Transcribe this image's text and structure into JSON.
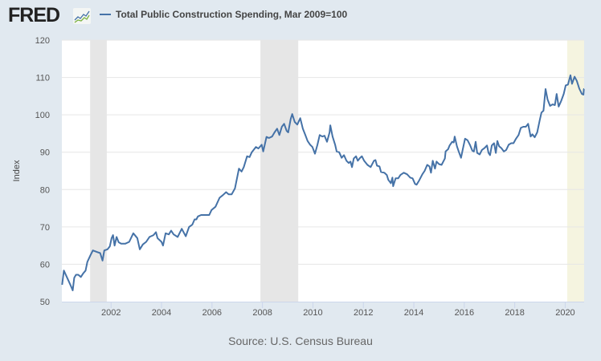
{
  "header": {
    "logo_text": "FRED",
    "logo_icon": "line-chart-icon",
    "legend_label": "Total Public Construction Spending, Mar 2009=100",
    "legend_color": "#4572a7"
  },
  "footer": {
    "source": "Source: U.S. Census Bureau"
  },
  "colors": {
    "background": "#e1e9f0",
    "plot_background": "#ffffff",
    "line": "#4572a7",
    "recession": "#e6e6e6",
    "preliminary_recession": "#f5f4e0",
    "grid": "#e6e6e6"
  },
  "chart_data": {
    "type": "line",
    "title": "Total Public Construction Spending, Mar 2009=100",
    "xlabel": "",
    "ylabel": "Index",
    "xlim": [
      2000.05,
      2020.75
    ],
    "ylim": [
      50,
      120
    ],
    "yticks": [
      50,
      60,
      70,
      80,
      90,
      100,
      110,
      120
    ],
    "xticks": [
      2002,
      2004,
      2006,
      2008,
      2010,
      2012,
      2014,
      2016,
      2018,
      2020
    ],
    "grid": true,
    "legend": "top-left",
    "recessions": [
      {
        "start": 2001.17,
        "end": 2001.83,
        "kind": "recession"
      },
      {
        "start": 2007.92,
        "end": 2009.42,
        "kind": "recession"
      },
      {
        "start": 2020.08,
        "end": 2020.75,
        "kind": "preliminary"
      }
    ],
    "series": [
      {
        "name": "Total Public Construction Spending, Mar 2009=100",
        "points": [
          [
            2000.06,
            54.5
          ],
          [
            2000.13,
            58.3
          ],
          [
            2000.22,
            57.0
          ],
          [
            2000.32,
            55.5
          ],
          [
            2000.42,
            54.0
          ],
          [
            2000.48,
            53.0
          ],
          [
            2000.54,
            56.4
          ],
          [
            2000.61,
            57.2
          ],
          [
            2000.7,
            57.2
          ],
          [
            2000.8,
            56.6
          ],
          [
            2000.9,
            57.6
          ],
          [
            2000.99,
            58.3
          ],
          [
            2001.06,
            60.6
          ],
          [
            2001.18,
            62.4
          ],
          [
            2001.28,
            63.7
          ],
          [
            2001.44,
            63.3
          ],
          [
            2001.57,
            63.0
          ],
          [
            2001.66,
            61.0
          ],
          [
            2001.73,
            63.7
          ],
          [
            2001.86,
            64.0
          ],
          [
            2001.95,
            64.8
          ],
          [
            2002.02,
            67.0
          ],
          [
            2002.08,
            67.8
          ],
          [
            2002.14,
            65.0
          ],
          [
            2002.22,
            67.3
          ],
          [
            2002.3,
            65.9
          ],
          [
            2002.4,
            65.5
          ],
          [
            2002.56,
            65.5
          ],
          [
            2002.72,
            66.0
          ],
          [
            2002.88,
            68.3
          ],
          [
            2003.04,
            67.0
          ],
          [
            2003.14,
            64.0
          ],
          [
            2003.26,
            65.3
          ],
          [
            2003.39,
            66.0
          ],
          [
            2003.52,
            67.3
          ],
          [
            2003.68,
            67.8
          ],
          [
            2003.78,
            68.6
          ],
          [
            2003.84,
            67.0
          ],
          [
            2004.0,
            66.0
          ],
          [
            2004.06,
            65.0
          ],
          [
            2004.16,
            68.3
          ],
          [
            2004.29,
            68.0
          ],
          [
            2004.38,
            69.0
          ],
          [
            2004.48,
            68.0
          ],
          [
            2004.64,
            67.3
          ],
          [
            2004.8,
            69.5
          ],
          [
            2004.96,
            67.5
          ],
          [
            2005.09,
            70.0
          ],
          [
            2005.22,
            70.6
          ],
          [
            2005.38,
            72.0
          ],
          [
            2005.31,
            72.0
          ],
          [
            2005.44,
            72.8
          ],
          [
            2005.57,
            73.2
          ],
          [
            2005.73,
            73.2
          ],
          [
            2005.89,
            73.2
          ],
          [
            2005.98,
            74.5
          ],
          [
            2006.14,
            75.4
          ],
          [
            2006.3,
            77.8
          ],
          [
            2006.43,
            78.5
          ],
          [
            2006.56,
            79.3
          ],
          [
            2006.66,
            78.7
          ],
          [
            2006.78,
            78.7
          ],
          [
            2006.91,
            80.3
          ],
          [
            2007.07,
            85.6
          ],
          [
            2007.17,
            84.8
          ],
          [
            2007.26,
            86.0
          ],
          [
            2007.39,
            88.9
          ],
          [
            2007.49,
            88.7
          ],
          [
            2007.58,
            90.0
          ],
          [
            2007.74,
            91.4
          ],
          [
            2007.84,
            91.0
          ],
          [
            2007.97,
            92.0
          ],
          [
            2008.03,
            90.2
          ],
          [
            2008.16,
            94.1
          ],
          [
            2008.26,
            93.8
          ],
          [
            2008.38,
            94.2
          ],
          [
            2008.48,
            95.3
          ],
          [
            2008.58,
            96.3
          ],
          [
            2008.67,
            94.6
          ],
          [
            2008.77,
            96.8
          ],
          [
            2008.86,
            97.6
          ],
          [
            2008.96,
            95.7
          ],
          [
            2009.02,
            95.3
          ],
          [
            2009.12,
            98.9
          ],
          [
            2009.18,
            100.2
          ],
          [
            2009.28,
            98.1
          ],
          [
            2009.38,
            97.4
          ],
          [
            2009.5,
            99.1
          ],
          [
            2009.6,
            96.3
          ],
          [
            2009.7,
            94.6
          ],
          [
            2009.79,
            93.0
          ],
          [
            2009.89,
            92.0
          ],
          [
            2009.98,
            91.4
          ],
          [
            2010.08,
            89.6
          ],
          [
            2010.18,
            92.0
          ],
          [
            2010.27,
            94.6
          ],
          [
            2010.37,
            94.2
          ],
          [
            2010.46,
            94.4
          ],
          [
            2010.56,
            92.8
          ],
          [
            2010.66,
            95.3
          ],
          [
            2010.69,
            97.2
          ],
          [
            2010.78,
            94.2
          ],
          [
            2010.88,
            92.0
          ],
          [
            2010.94,
            90.2
          ],
          [
            2011.04,
            90.0
          ],
          [
            2011.14,
            88.5
          ],
          [
            2011.23,
            89.2
          ],
          [
            2011.33,
            87.7
          ],
          [
            2011.42,
            87.1
          ],
          [
            2011.49,
            87.5
          ],
          [
            2011.55,
            86.0
          ],
          [
            2011.62,
            88.3
          ],
          [
            2011.71,
            88.9
          ],
          [
            2011.78,
            87.7
          ],
          [
            2011.87,
            88.5
          ],
          [
            2011.94,
            88.9
          ],
          [
            2012.03,
            87.7
          ],
          [
            2012.16,
            86.6
          ],
          [
            2012.29,
            86.0
          ],
          [
            2012.42,
            87.7
          ],
          [
            2012.48,
            87.9
          ],
          [
            2012.54,
            86.4
          ],
          [
            2012.64,
            86.2
          ],
          [
            2012.7,
            84.7
          ],
          [
            2012.83,
            84.5
          ],
          [
            2012.93,
            83.9
          ],
          [
            2012.99,
            82.6
          ],
          [
            2013.09,
            81.7
          ],
          [
            2013.15,
            83.2
          ],
          [
            2013.18,
            80.9
          ],
          [
            2013.28,
            83.0
          ],
          [
            2013.38,
            83.0
          ],
          [
            2013.47,
            83.9
          ],
          [
            2013.6,
            84.5
          ],
          [
            2013.73,
            84.1
          ],
          [
            2013.86,
            83.2
          ],
          [
            2013.95,
            83.0
          ],
          [
            2014.05,
            81.5
          ],
          [
            2014.11,
            81.3
          ],
          [
            2014.21,
            82.4
          ],
          [
            2014.34,
            84.1
          ],
          [
            2014.43,
            85.0
          ],
          [
            2014.53,
            86.6
          ],
          [
            2014.62,
            86.2
          ],
          [
            2014.68,
            84.5
          ],
          [
            2014.75,
            87.7
          ],
          [
            2014.84,
            85.6
          ],
          [
            2014.9,
            87.5
          ],
          [
            2015.0,
            86.8
          ],
          [
            2015.1,
            86.6
          ],
          [
            2015.23,
            88.3
          ],
          [
            2015.26,
            90.2
          ],
          [
            2015.36,
            90.8
          ],
          [
            2015.42,
            91.8
          ],
          [
            2015.52,
            92.8
          ],
          [
            2015.58,
            92.6
          ],
          [
            2015.62,
            94.2
          ],
          [
            2015.71,
            91.6
          ],
          [
            2015.78,
            90.2
          ],
          [
            2015.87,
            88.5
          ],
          [
            2015.94,
            90.8
          ],
          [
            2016.03,
            93.6
          ],
          [
            2016.13,
            93.2
          ],
          [
            2016.22,
            92.0
          ],
          [
            2016.32,
            90.4
          ],
          [
            2016.38,
            90.2
          ],
          [
            2016.45,
            92.8
          ],
          [
            2016.51,
            89.8
          ],
          [
            2016.61,
            89.4
          ],
          [
            2016.7,
            90.6
          ],
          [
            2016.8,
            91.1
          ],
          [
            2016.9,
            91.8
          ],
          [
            2016.96,
            89.8
          ],
          [
            2017.02,
            89.2
          ],
          [
            2017.09,
            91.8
          ],
          [
            2017.18,
            92.4
          ],
          [
            2017.25,
            89.8
          ],
          [
            2017.31,
            93.0
          ],
          [
            2017.38,
            91.6
          ],
          [
            2017.47,
            91.1
          ],
          [
            2017.57,
            90.2
          ],
          [
            2017.66,
            90.6
          ],
          [
            2017.76,
            92.0
          ],
          [
            2017.86,
            92.4
          ],
          [
            2017.95,
            92.4
          ],
          [
            2018.05,
            93.6
          ],
          [
            2018.15,
            94.6
          ],
          [
            2018.24,
            96.5
          ],
          [
            2018.34,
            96.8
          ],
          [
            2018.44,
            96.8
          ],
          [
            2018.53,
            97.6
          ],
          [
            2018.63,
            94.2
          ],
          [
            2018.7,
            94.8
          ],
          [
            2018.79,
            94.0
          ],
          [
            2018.89,
            95.3
          ],
          [
            2018.99,
            98.5
          ],
          [
            2019.06,
            100.6
          ],
          [
            2019.14,
            101.1
          ],
          [
            2019.22,
            106.9
          ],
          [
            2019.3,
            104.1
          ],
          [
            2019.4,
            102.4
          ],
          [
            2019.5,
            102.8
          ],
          [
            2019.59,
            102.6
          ],
          [
            2019.66,
            105.6
          ],
          [
            2019.74,
            102.2
          ],
          [
            2019.84,
            103.7
          ],
          [
            2019.94,
            105.6
          ],
          [
            2020.02,
            107.9
          ],
          [
            2020.11,
            108.1
          ],
          [
            2020.21,
            110.6
          ],
          [
            2020.27,
            108.3
          ],
          [
            2020.37,
            110.2
          ],
          [
            2020.46,
            109.1
          ],
          [
            2020.56,
            107.0
          ],
          [
            2020.66,
            105.6
          ],
          [
            2020.72,
            105.4
          ],
          [
            2020.74,
            106.9
          ],
          [
            2020.75,
            106.9
          ]
        ]
      }
    ]
  }
}
